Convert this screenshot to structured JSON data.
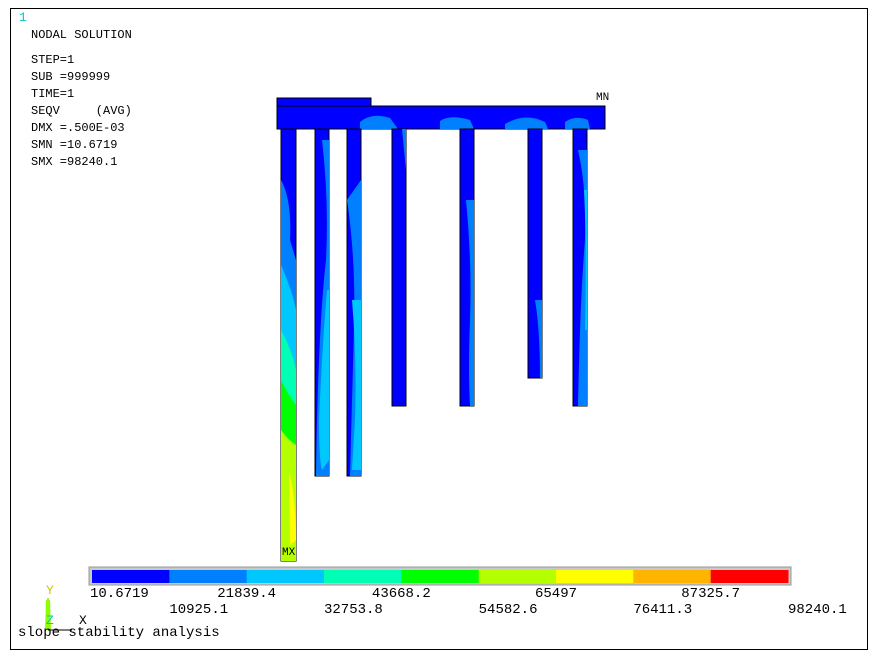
{
  "window_number": "1",
  "info": {
    "title": "NODAL SOLUTION",
    "step": "STEP=1",
    "sub": "SUB =999999",
    "time": "TIME=1",
    "seqv": "SEQV     (AVG)",
    "dmx": "DMX =.500E-03",
    "smn": "SMN =10.6719",
    "smx": "SMX =98240.1"
  },
  "markers": {
    "min": "MN",
    "max": "MX"
  },
  "legend": {
    "colors": [
      "#0000ff",
      "#0080ff",
      "#00c8ff",
      "#00ffb4",
      "#00ff00",
      "#b4ff00",
      "#ffff00",
      "#ffb400",
      "#ff0000"
    ],
    "tick_labels_top": [
      "10.6719",
      "21839.4",
      "43668.2",
      "65497",
      "87325.7"
    ],
    "tick_labels_bottom": [
      "10925.1",
      "32753.8",
      "54582.6",
      "76411.3",
      "98240.1"
    ]
  },
  "axes": {
    "y": "Y",
    "z": "Z",
    "x": "X"
  },
  "subtitle": "slope stability analysis",
  "colors": {
    "triad_y": "#c8c800",
    "triad_z": "#00c8c8",
    "outline": "#000000"
  }
}
